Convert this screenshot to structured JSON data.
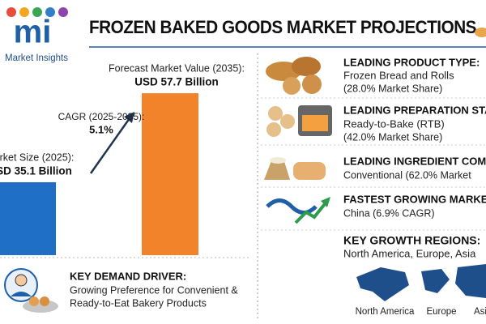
{
  "header": {
    "logo": "mi",
    "brand": "Market Insights",
    "title": "FROZEN BAKED GOODS MARKET PROJECTIONS"
  },
  "chart_data": {
    "type": "bar",
    "categories": [
      "arket Size (2025):",
      "Forecast Market Value (2035):"
    ],
    "values": [
      35.1,
      57.7
    ],
    "value_labels": [
      "SD 35.1 Billion",
      "USD 57.7 Billion"
    ],
    "colors": [
      "#1f6fc6",
      "#f2832a"
    ],
    "ylim": [
      16.6,
      60.8
    ],
    "annotation": {
      "label": "CAGR (2025-2035):",
      "text": "5.1%"
    }
  },
  "driver": {
    "heading": "KEY DEMAND DRIVER:",
    "lines": [
      "Growing Preference for Convenient &",
      "Ready-to-Eat Bakery Products"
    ]
  },
  "panels": [
    {
      "heading": "LEADING PRODUCT TYPE:",
      "lines": [
        "Frozen Bread and Rolls",
        "(28.0% Market Share)"
      ]
    },
    {
      "heading": "LEADING PREPARATION STAT",
      "lines": [
        "Ready-to-Bake (RTB)",
        "(42.0% Market Share)"
      ]
    },
    {
      "heading": "LEADING INGREDIENT COMPO",
      "lines": [
        "Conventional (62.0% Market"
      ]
    },
    {
      "heading": "FASTEST GROWING MARKET",
      "lines": [
        "China (6.9% CAGR)"
      ]
    }
  ],
  "regions": {
    "heading": "KEY GROWTH REGIONS:",
    "text": "North America, Europe, Asia",
    "labels": [
      "North America",
      "Europe",
      "Asi"
    ]
  }
}
